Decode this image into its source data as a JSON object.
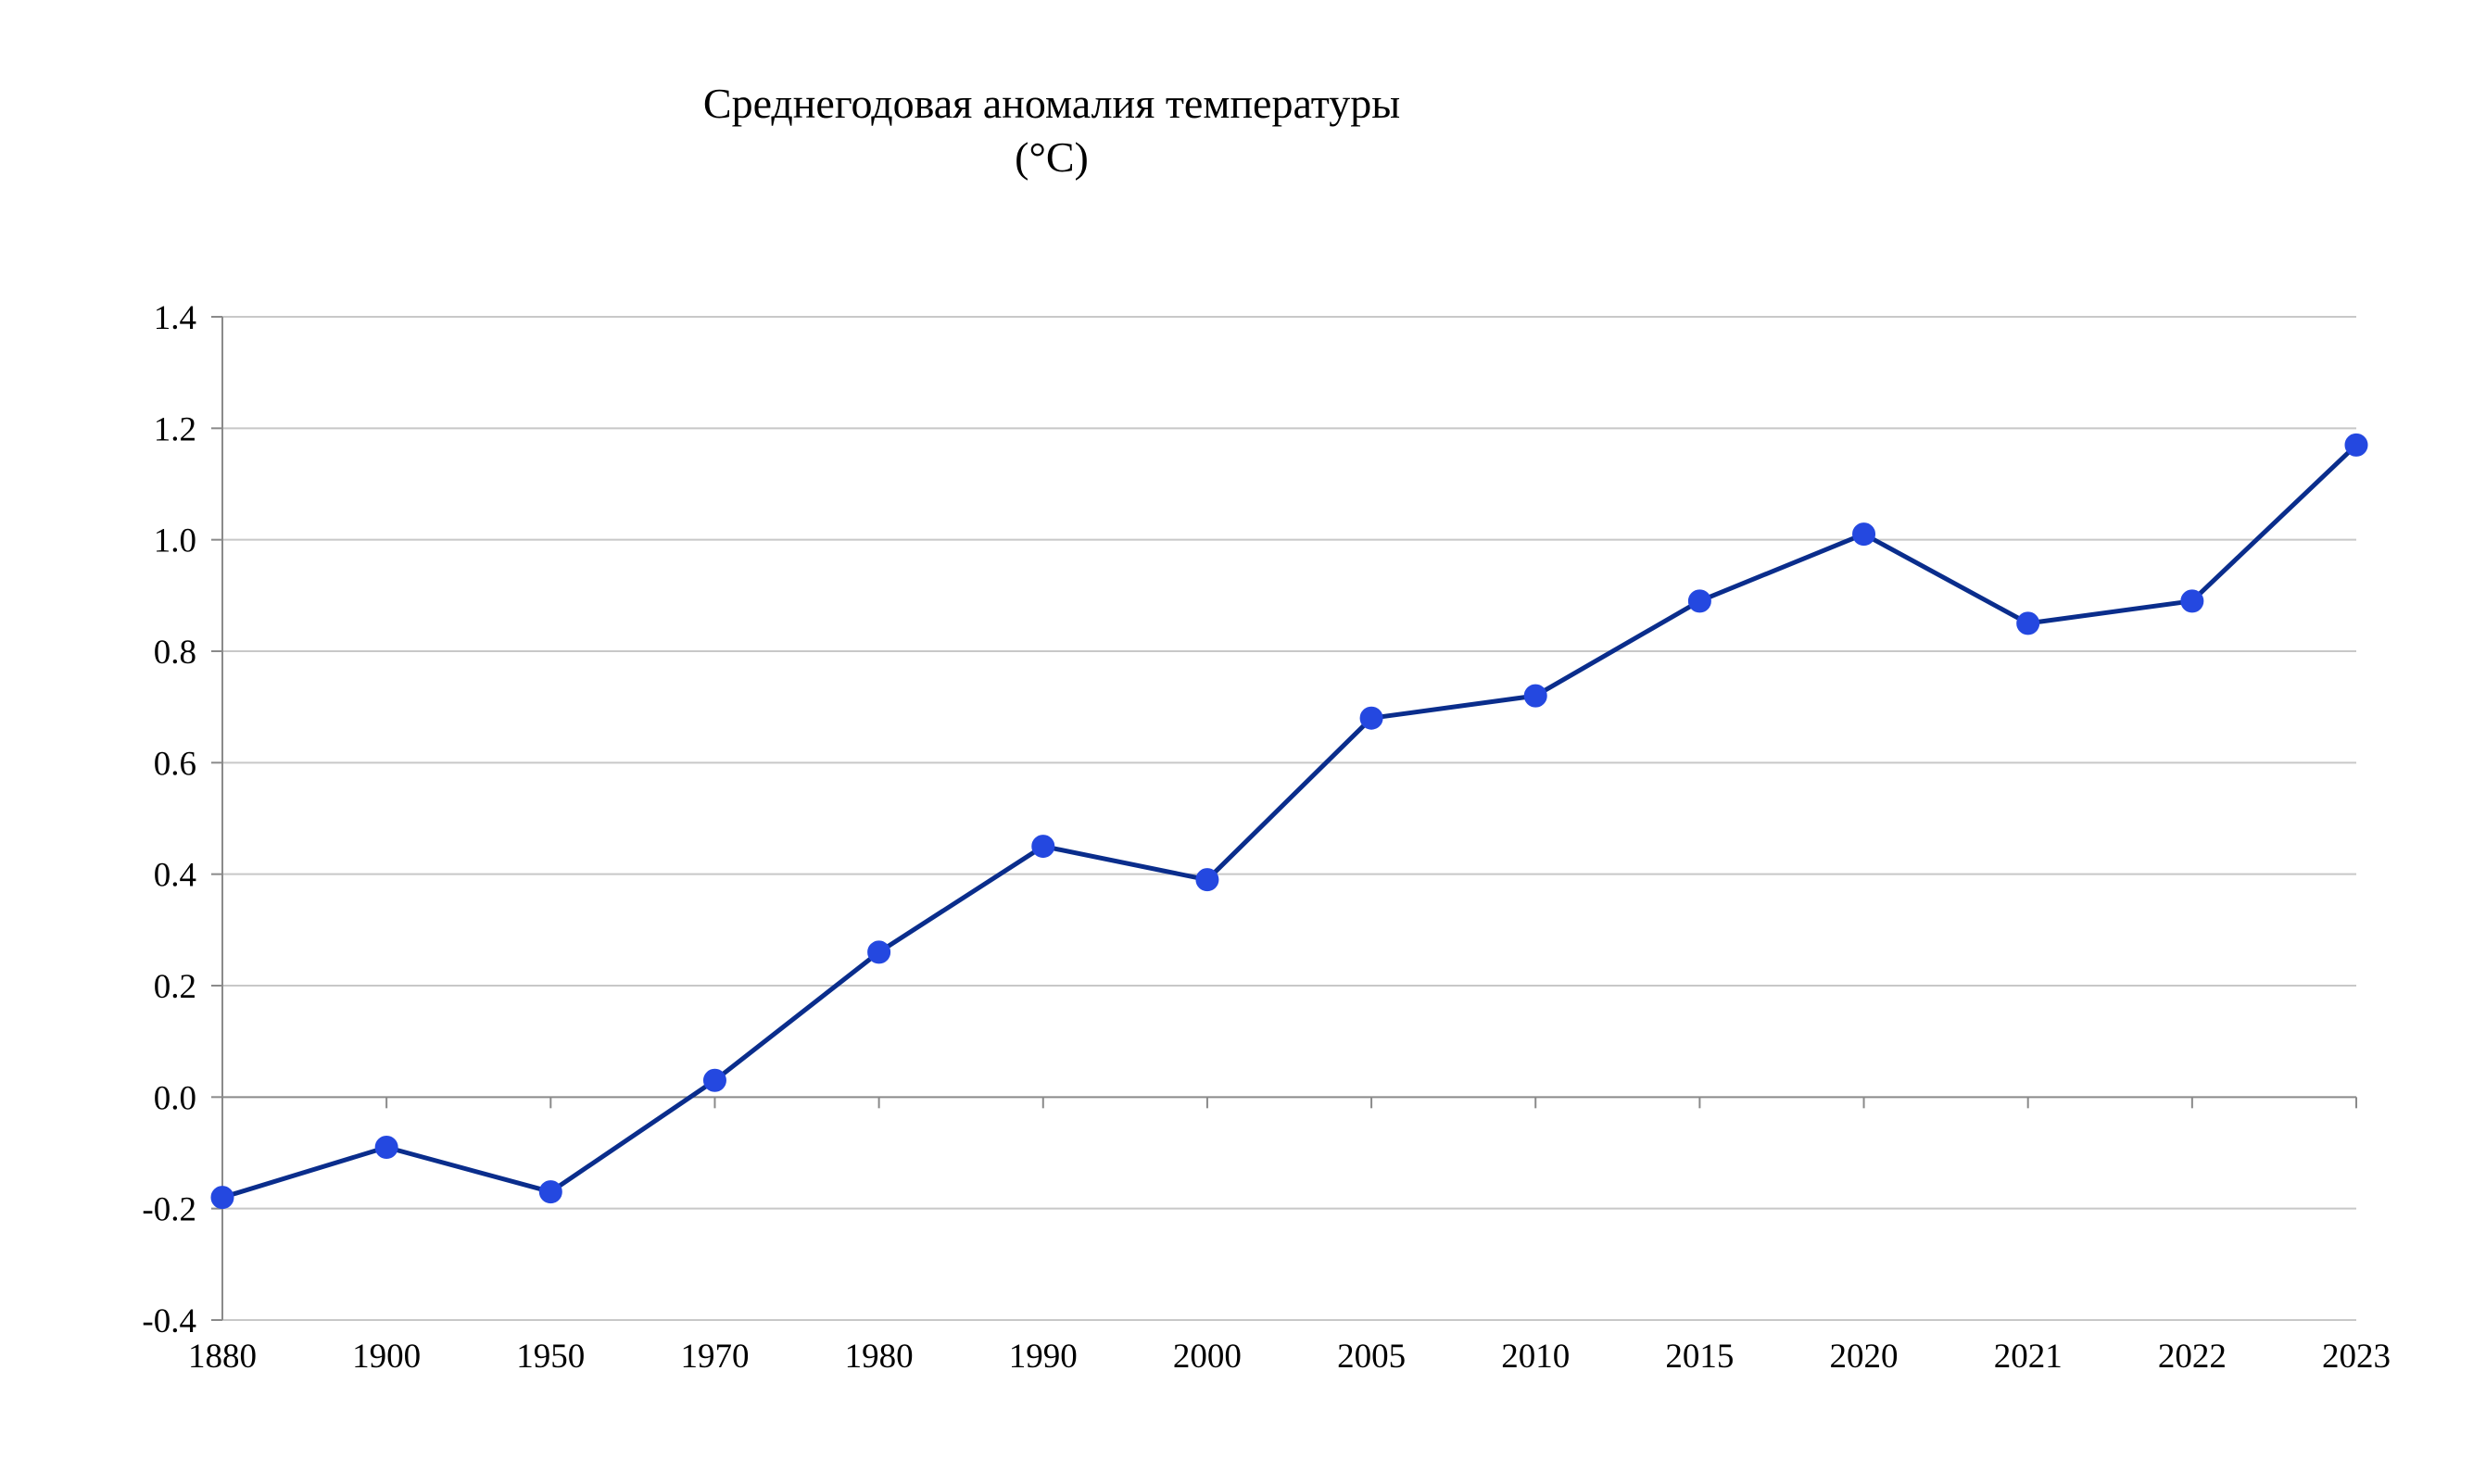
{
  "chart_data": {
    "type": "line",
    "title_line1": "Среднегодовая аномалия температуры",
    "title_line2": "(°C)",
    "xlabel": "",
    "ylabel": "",
    "categories": [
      "1880",
      "1900",
      "1950",
      "1970",
      "1980",
      "1990",
      "2000",
      "2005",
      "2010",
      "2015",
      "2020",
      "2021",
      "2022",
      "2023"
    ],
    "series": [
      {
        "values": [
          -0.18,
          -0.09,
          -0.17,
          0.03,
          0.26,
          0.45,
          0.39,
          0.68,
          0.72,
          0.89,
          1.01,
          0.85,
          0.89,
          1.17
        ]
      }
    ],
    "ylim": [
      -0.4,
      1.4
    ],
    "yticks": [
      "-0.4",
      "-0.2",
      "0.0",
      "0.2",
      "0.4",
      "0.6",
      "0.8",
      "1.0",
      "1.2",
      "1.4"
    ],
    "grid": true,
    "legend": "none",
    "colors": {
      "line": "#0a2d8c",
      "marker": "#2448e0",
      "grid": "#c8c8c8",
      "axis": "#8a8a8a"
    }
  }
}
